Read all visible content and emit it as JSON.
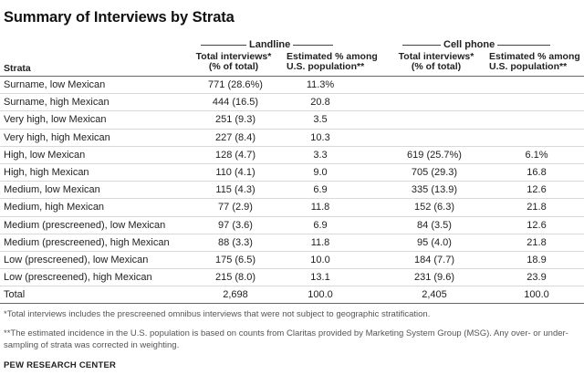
{
  "title": "Summary of Interviews by Strata",
  "groups": {
    "landline": "Landline",
    "cell": "Cell phone"
  },
  "columns": {
    "strata": "Strata",
    "landline_total_l1": "Total interviews*",
    "landline_total_l2": "(% of total)",
    "landline_est_l1": "Estimated % among",
    "landline_est_l2": "U.S. population**",
    "cell_total_l1": "Total interviews*",
    "cell_total_l2": "(% of total)",
    "cell_est_l1": "Estimated % among",
    "cell_est_l2": "U.S. population**"
  },
  "rows": [
    {
      "strata": "Surname, low Mexican",
      "lt": "771 (28.6%)",
      "le": "11.3%",
      "ct": "",
      "ce": ""
    },
    {
      "strata": "Surname, high Mexican",
      "lt": "444 (16.5)",
      "le": "20.8",
      "ct": "",
      "ce": ""
    },
    {
      "strata": "Very high, low Mexican",
      "lt": "251 (9.3)",
      "le": "3.5",
      "ct": "",
      "ce": ""
    },
    {
      "strata": "Very high, high Mexican",
      "lt": "227 (8.4)",
      "le": "10.3",
      "ct": "",
      "ce": ""
    },
    {
      "strata": "High, low Mexican",
      "lt": "128 (4.7)",
      "le": "3.3",
      "ct": "619 (25.7%)",
      "ce": "6.1%"
    },
    {
      "strata": "High, high Mexican",
      "lt": "110 (4.1)",
      "le": "9.0",
      "ct": "705 (29.3)",
      "ce": "16.8"
    },
    {
      "strata": "Medium, low Mexican",
      "lt": "115 (4.3)",
      "le": "6.9",
      "ct": "335 (13.9)",
      "ce": "12.6"
    },
    {
      "strata": "Medium, high Mexican",
      "lt": "77 (2.9)",
      "le": "11.8",
      "ct": "152 (6.3)",
      "ce": "21.8"
    },
    {
      "strata": "Medium (prescreened), low Mexican",
      "lt": "97 (3.6)",
      "le": "6.9",
      "ct": "84 (3.5)",
      "ce": "12.6"
    },
    {
      "strata": "Medium (prescreened), high Mexican",
      "lt": "88 (3.3)",
      "le": "11.8",
      "ct": "95 (4.0)",
      "ce": "21.8"
    },
    {
      "strata": "Low (prescreened), low Mexican",
      "lt": "175 (6.5)",
      "le": "10.0",
      "ct": "184 (7.7)",
      "ce": "18.9"
    },
    {
      "strata": "Low (prescreened), high Mexican",
      "lt": "215 (8.0)",
      "le": "13.1",
      "ct": "231 (9.6)",
      "ce": "23.9"
    },
    {
      "strata": "Total",
      "lt": "2,698",
      "le": "100.0",
      "ct": "2,405",
      "ce": "100.0"
    }
  ],
  "notes": {
    "note1": "*Total interviews includes the prescreened omnibus interviews that were not subject to geographic stratification.",
    "note2": "**The estimated incidence in the U.S. population is based on counts from Claritas provided by Marketing System Group (MSG). Any over- or under-sampling of strata was corrected in weighting."
  },
  "source": "PEW RESEARCH CENTER"
}
